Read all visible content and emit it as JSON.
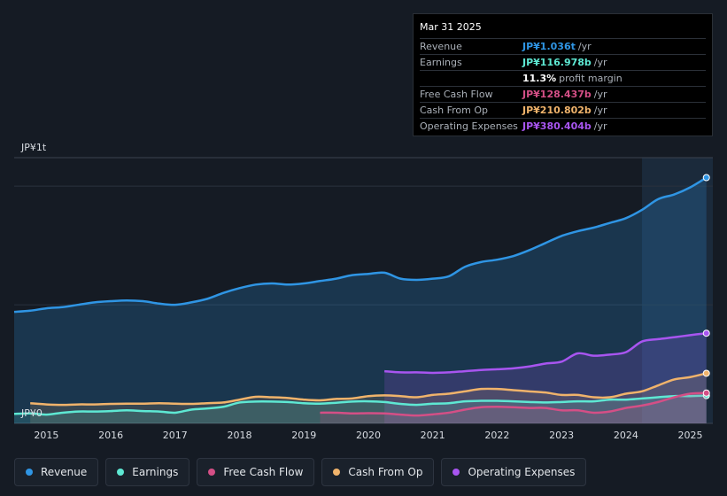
{
  "tooltip": {
    "date": "Mar 31 2025",
    "rows": [
      {
        "label": "Revenue",
        "value": "JP¥1.036t",
        "unit": "/yr",
        "color": "#2f95e4"
      },
      {
        "label": "Earnings",
        "value": "JP¥116.978b",
        "unit": "/yr",
        "color": "#5ee8d3"
      },
      {
        "label": "",
        "value": "11.3%",
        "unit": "profit margin",
        "color": "#ffffff"
      },
      {
        "label": "Free Cash Flow",
        "value": "JP¥128.437b",
        "unit": "/yr",
        "color": "#d44f86"
      },
      {
        "label": "Cash From Op",
        "value": "JP¥210.802b",
        "unit": "/yr",
        "color": "#f0b36b"
      },
      {
        "label": "Operating Expenses",
        "value": "JP¥380.404b",
        "unit": "/yr",
        "color": "#a855f0"
      }
    ]
  },
  "legend": [
    {
      "label": "Revenue",
      "color": "#2f95e4"
    },
    {
      "label": "Earnings",
      "color": "#5ee8d3"
    },
    {
      "label": "Free Cash Flow",
      "color": "#d44f86"
    },
    {
      "label": "Cash From Op",
      "color": "#f0b36b"
    },
    {
      "label": "Operating Expenses",
      "color": "#a855f0"
    }
  ],
  "chart_data": {
    "type": "area",
    "y_top_label": "JP¥1t",
    "y_bottom_label": "JP¥0",
    "ylim": [
      0,
      1.12
    ],
    "xlim": [
      2014.5,
      2025.35
    ],
    "x_ticks": [
      "2015",
      "2016",
      "2017",
      "2018",
      "2019",
      "2020",
      "2021",
      "2022",
      "2023",
      "2024",
      "2025"
    ],
    "highlight_from": 2024.25,
    "series": [
      {
        "name": "Revenue",
        "color": "#2f95e4",
        "x": [
          2014.5,
          2014.75,
          2015,
          2015.25,
          2015.5,
          2015.75,
          2016,
          2016.25,
          2016.5,
          2016.75,
          2017,
          2017.25,
          2017.5,
          2017.75,
          2018,
          2018.25,
          2018.5,
          2018.75,
          2019,
          2019.25,
          2019.5,
          2019.75,
          2020,
          2020.25,
          2020.5,
          2020.75,
          2021,
          2021.25,
          2021.5,
          2021.75,
          2022,
          2022.25,
          2022.5,
          2022.75,
          2023,
          2023.25,
          2023.5,
          2023.75,
          2024,
          2024.25,
          2024.5,
          2024.75,
          2025,
          2025.25
        ],
        "y": [
          0.47,
          0.475,
          0.485,
          0.49,
          0.5,
          0.51,
          0.515,
          0.518,
          0.515,
          0.505,
          0.5,
          0.51,
          0.525,
          0.55,
          0.57,
          0.585,
          0.59,
          0.585,
          0.59,
          0.6,
          0.61,
          0.625,
          0.63,
          0.635,
          0.61,
          0.605,
          0.61,
          0.62,
          0.66,
          0.68,
          0.69,
          0.705,
          0.73,
          0.76,
          0.79,
          0.81,
          0.825,
          0.845,
          0.865,
          0.9,
          0.945,
          0.965,
          0.995,
          1.036
        ]
      },
      {
        "name": "Operating Expenses",
        "color": "#a855f0",
        "x": [
          2020.25,
          2020.5,
          2020.75,
          2021,
          2021.25,
          2021.5,
          2021.75,
          2022,
          2022.25,
          2022.5,
          2022.75,
          2023,
          2023.25,
          2023.5,
          2023.75,
          2024,
          2024.25,
          2024.5,
          2024.75,
          2025,
          2025.25
        ],
        "y": [
          0.22,
          0.215,
          0.215,
          0.213,
          0.215,
          0.22,
          0.225,
          0.228,
          0.232,
          0.24,
          0.252,
          0.26,
          0.295,
          0.285,
          0.29,
          0.3,
          0.345,
          0.355,
          0.363,
          0.372,
          0.38
        ]
      },
      {
        "name": "Cash From Op",
        "color": "#f0b36b",
        "x": [
          2014.75,
          2015,
          2015.25,
          2015.5,
          2015.75,
          2016,
          2016.25,
          2016.5,
          2016.75,
          2017,
          2017.25,
          2017.5,
          2017.75,
          2018,
          2018.25,
          2018.5,
          2018.75,
          2019,
          2019.25,
          2019.5,
          2019.75,
          2020,
          2020.25,
          2020.5,
          2020.75,
          2021,
          2021.25,
          2021.5,
          2021.75,
          2022,
          2022.25,
          2022.5,
          2022.75,
          2023,
          2023.25,
          2023.5,
          2023.75,
          2024,
          2024.25,
          2024.5,
          2024.75,
          2025,
          2025.25
        ],
        "y": [
          0.085,
          0.08,
          0.078,
          0.08,
          0.08,
          0.082,
          0.083,
          0.083,
          0.085,
          0.083,
          0.082,
          0.085,
          0.088,
          0.1,
          0.112,
          0.11,
          0.107,
          0.1,
          0.097,
          0.103,
          0.105,
          0.115,
          0.118,
          0.115,
          0.11,
          0.12,
          0.125,
          0.135,
          0.145,
          0.145,
          0.14,
          0.135,
          0.13,
          0.12,
          0.12,
          0.11,
          0.11,
          0.125,
          0.135,
          0.16,
          0.185,
          0.195,
          0.211
        ]
      },
      {
        "name": "Earnings",
        "color": "#5ee8d3",
        "x": [
          2014.5,
          2014.75,
          2015,
          2015.25,
          2015.5,
          2015.75,
          2016,
          2016.25,
          2016.5,
          2016.75,
          2017,
          2017.25,
          2017.5,
          2017.75,
          2018,
          2018.25,
          2018.5,
          2018.75,
          2019,
          2019.25,
          2019.5,
          2019.75,
          2020,
          2020.25,
          2020.5,
          2020.75,
          2021,
          2021.25,
          2021.5,
          2021.75,
          2022,
          2022.25,
          2022.5,
          2022.75,
          2023,
          2023.25,
          2023.5,
          2023.75,
          2024,
          2024.25,
          2024.5,
          2024.75,
          2025,
          2025.25
        ],
        "y": [
          0.04,
          0.042,
          0.037,
          0.045,
          0.05,
          0.05,
          0.052,
          0.055,
          0.052,
          0.05,
          0.045,
          0.058,
          0.063,
          0.07,
          0.088,
          0.092,
          0.092,
          0.09,
          0.085,
          0.083,
          0.087,
          0.092,
          0.093,
          0.09,
          0.082,
          0.078,
          0.083,
          0.085,
          0.093,
          0.095,
          0.095,
          0.093,
          0.09,
          0.088,
          0.09,
          0.093,
          0.093,
          0.1,
          0.1,
          0.105,
          0.11,
          0.115,
          0.115,
          0.117
        ]
      },
      {
        "name": "Free Cash Flow",
        "color": "#d44f86",
        "x": [
          2019.25,
          2019.5,
          2019.75,
          2020,
          2020.25,
          2020.5,
          2020.75,
          2021,
          2021.25,
          2021.5,
          2021.75,
          2022,
          2022.25,
          2022.5,
          2022.75,
          2023,
          2023.25,
          2023.5,
          2023.75,
          2024,
          2024.25,
          2024.5,
          2024.75,
          2025,
          2025.25
        ],
        "y": [
          0.045,
          0.045,
          0.042,
          0.043,
          0.042,
          0.037,
          0.033,
          0.038,
          0.045,
          0.058,
          0.068,
          0.07,
          0.068,
          0.065,
          0.065,
          0.055,
          0.055,
          0.045,
          0.05,
          0.065,
          0.075,
          0.09,
          0.11,
          0.125,
          0.128
        ]
      }
    ]
  }
}
